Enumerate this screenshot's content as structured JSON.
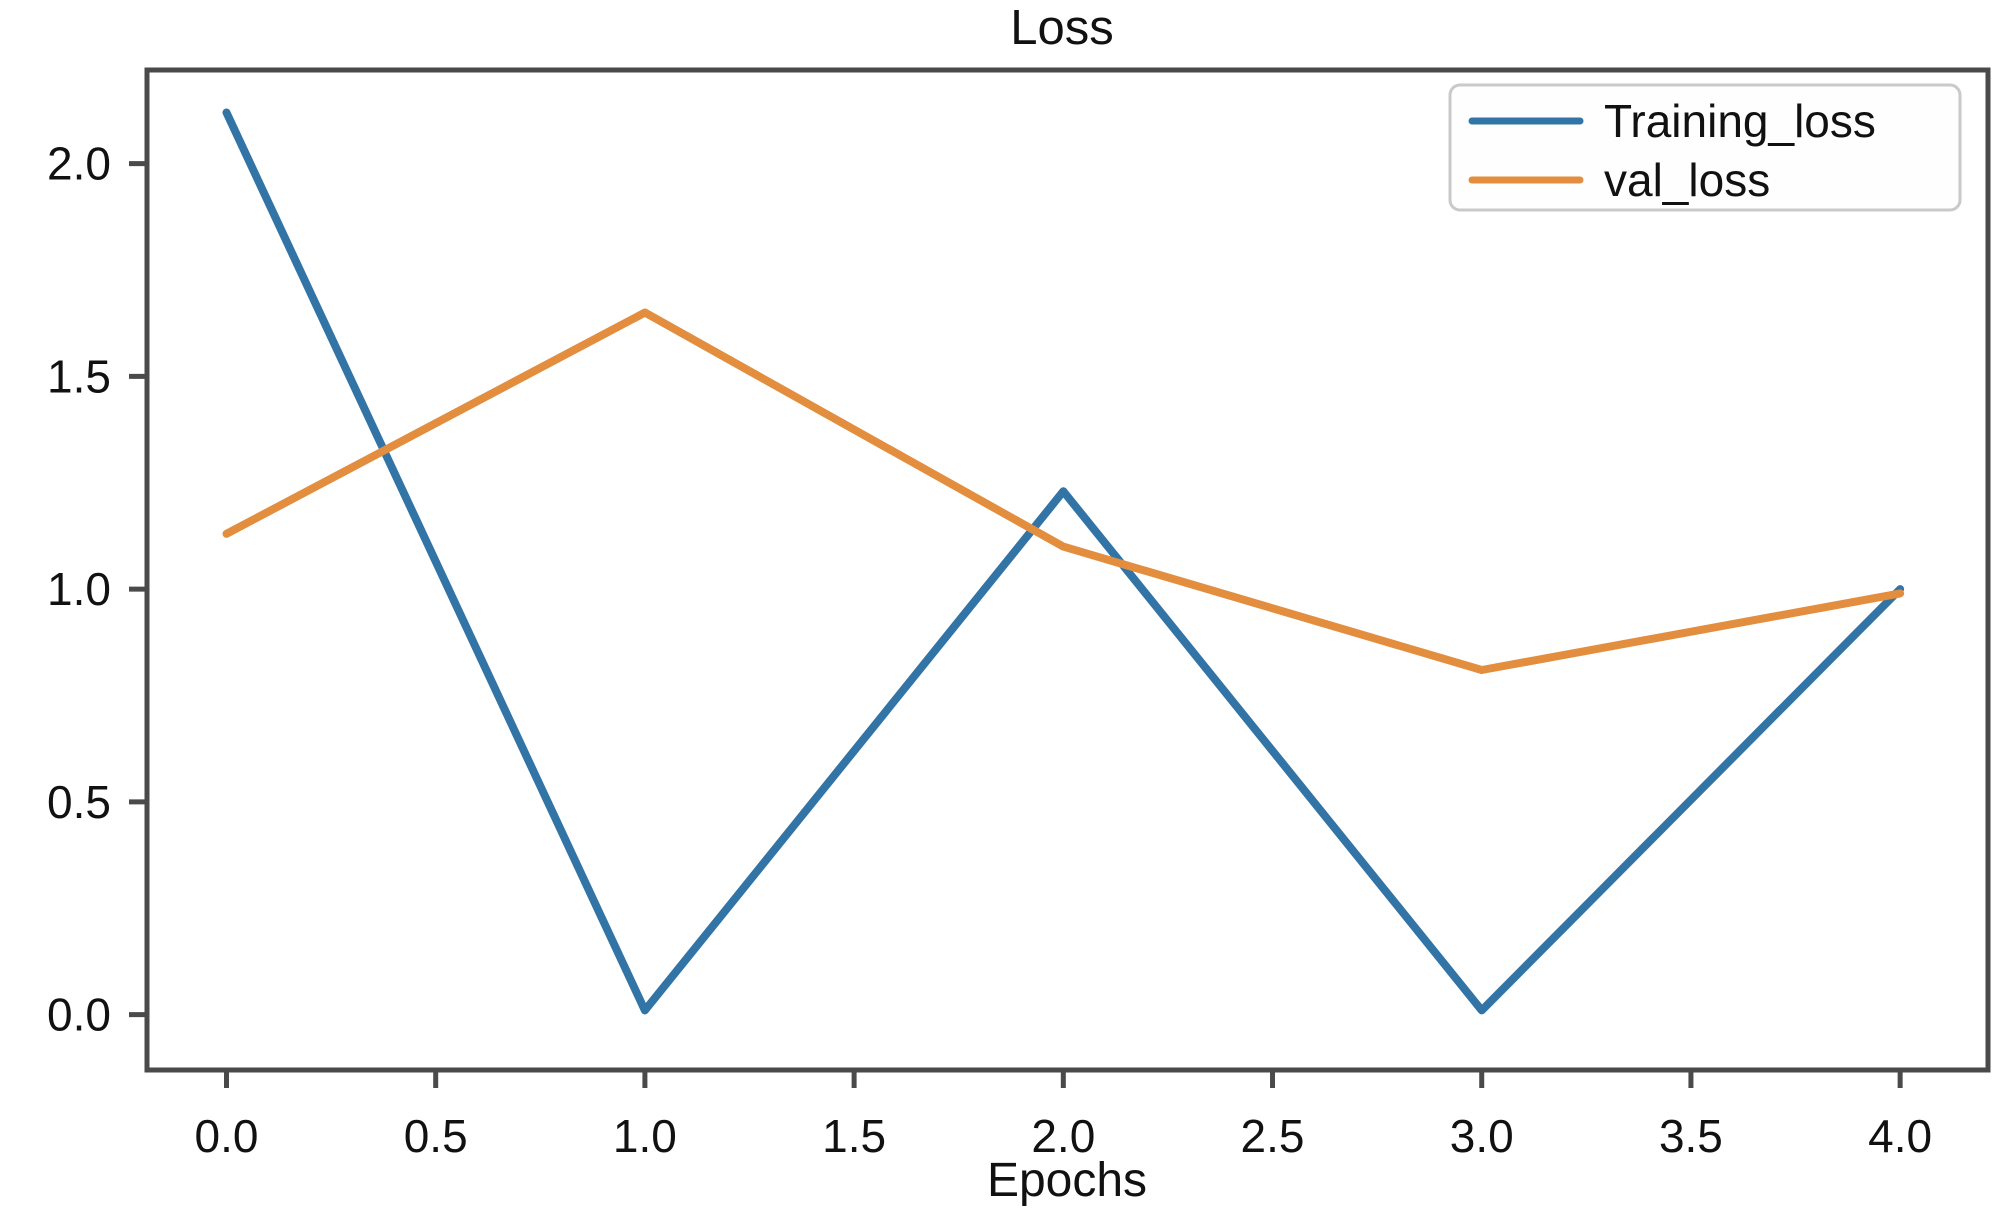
{
  "chart_data": {
    "type": "line",
    "title": "Loss",
    "xlabel": "Epochs",
    "ylabel": "",
    "x": [
      0,
      1,
      2,
      3,
      4
    ],
    "series": [
      {
        "name": "Training_loss",
        "color": "#3374a6",
        "values": [
          2.12,
          0.01,
          1.23,
          0.01,
          1.0
        ]
      },
      {
        "name": "val_loss",
        "color": "#e28e3e",
        "values": [
          1.13,
          1.65,
          1.1,
          0.81,
          0.99
        ]
      }
    ],
    "xlim": [
      -0.19,
      4.21
    ],
    "ylim": [
      -0.13,
      2.22
    ],
    "xticks": {
      "values": [
        0,
        0.5,
        1,
        1.5,
        2,
        2.5,
        3,
        3.5,
        4
      ],
      "labels": [
        "0.0",
        "0.5",
        "1.0",
        "1.5",
        "2.0",
        "2.5",
        "3.0",
        "3.5",
        "4.0"
      ]
    },
    "yticks": {
      "values": [
        0,
        0.5,
        1,
        1.5,
        2
      ],
      "labels": [
        "0.0",
        "0.5",
        "1.0",
        "1.5",
        "2.0"
      ]
    },
    "grid": false,
    "legend": {
      "position": "upper right"
    },
    "style": {
      "axis_color": "#4a4a4a",
      "text_color": "#111111",
      "legend_border": "#c9c9c9",
      "legend_fill": "#fefefe",
      "line_width": 8
    }
  }
}
